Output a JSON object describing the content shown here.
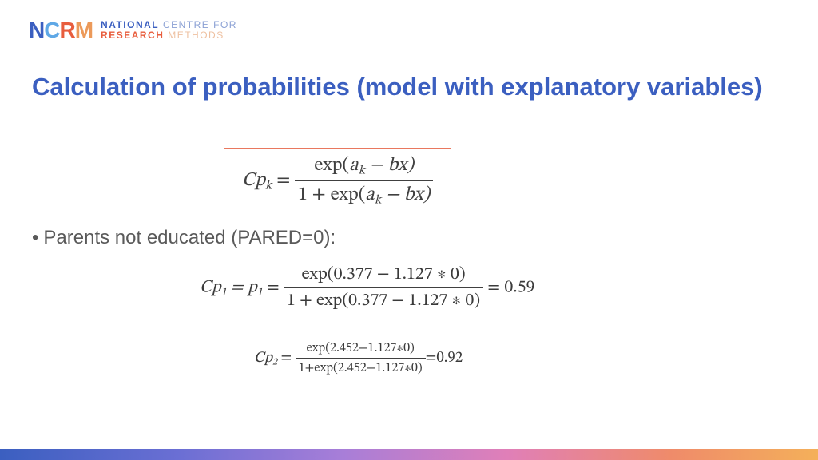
{
  "logo": {
    "mark": {
      "n": "N",
      "c": "C",
      "r": "R",
      "m": "M"
    },
    "line1_bold": "NATIONAL",
    "line1_light": " CENTRE FOR",
    "line2_bold": "RESEARCH",
    "line2_light": " METHODS"
  },
  "title": {
    "text": "Calculation of probabilities (model with explanatory variables)",
    "color": "#3b5fc0"
  },
  "formula_box": {
    "lhs_C": "C",
    "lhs_p": "p",
    "lhs_sub": "k",
    "eq": " = ",
    "num": "exp(aₖ − bx)",
    "num_a": "a",
    "num_k": "k",
    "num_bx": " − bx)",
    "num_exp_open": "exp(",
    "den_prefix": "1 + exp(",
    "border_color": "#e9785f"
  },
  "bullet1": "Parents not educated (PARED=0):",
  "eq1": {
    "lhs": "Cp",
    "sub1": "1",
    "mid": " = p",
    "sub1b": "1",
    "eq": " = ",
    "num": "exp(0.377 − 1.127 ∗ 0)",
    "den": "1 + exp(0.377 − 1.127 ∗ 0)",
    "rhs": " = 0.59"
  },
  "eq2": {
    "lhs": "Cp",
    "sub2": "2",
    "eq": " = ",
    "num": "exp(2.452−1.127∗0)",
    "den": "1+exp(2.452−1.127∗0)",
    "rhs": "=0.92"
  },
  "gradient": {
    "c1": "#3b5fc0",
    "c2": "#6b6fd4",
    "c3": "#a87ed8",
    "c4": "#e07fb8",
    "c5": "#ef8b6a",
    "c6": "#f4b05a"
  }
}
